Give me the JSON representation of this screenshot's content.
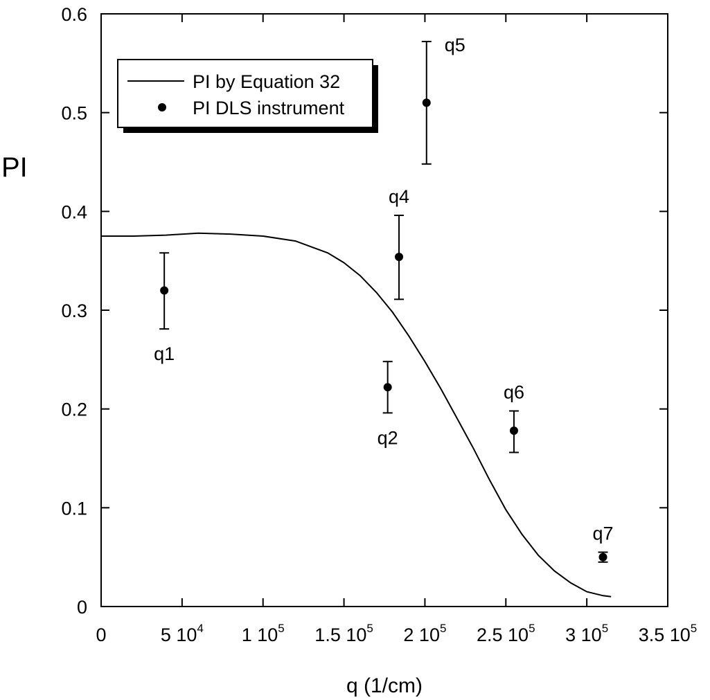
{
  "chart_data": {
    "type": "scatter",
    "title": "",
    "xlabel": "q (1/cm)",
    "ylabel": "PI",
    "xlim": [
      0,
      350000
    ],
    "ylim": [
      0,
      0.6
    ],
    "grid": false,
    "legend_position": "top-left",
    "x_ticks": [
      {
        "value": 0,
        "mant": "0",
        "exp": ""
      },
      {
        "value": 50000,
        "mant": "5 10",
        "exp": "4"
      },
      {
        "value": 100000,
        "mant": "1 10",
        "exp": "5"
      },
      {
        "value": 150000,
        "mant": "1.5 10",
        "exp": "5"
      },
      {
        "value": 200000,
        "mant": "2 10",
        "exp": "5"
      },
      {
        "value": 250000,
        "mant": "2.5 10",
        "exp": "5"
      },
      {
        "value": 300000,
        "mant": "3 10",
        "exp": "5"
      },
      {
        "value": 350000,
        "mant": "3.5 10",
        "exp": "5"
      }
    ],
    "y_ticks": [
      {
        "value": 0,
        "label": "0"
      },
      {
        "value": 0.1,
        "label": "0.1"
      },
      {
        "value": 0.2,
        "label": "0.2"
      },
      {
        "value": 0.3,
        "label": "0.3"
      },
      {
        "value": 0.4,
        "label": "0.4"
      },
      {
        "value": 0.5,
        "label": "0.5"
      },
      {
        "value": 0.6,
        "label": "0.6"
      }
    ],
    "legend": [
      {
        "label": "PI by Equation 32",
        "marker": "line"
      },
      {
        "label": "PI DLS instrument",
        "marker": "dot"
      }
    ],
    "series": [
      {
        "name": "PI by Equation 32",
        "kind": "line",
        "color": "#000000",
        "x": [
          0,
          20000,
          40000,
          60000,
          80000,
          100000,
          120000,
          140000,
          150000,
          160000,
          170000,
          180000,
          190000,
          200000,
          210000,
          220000,
          230000,
          240000,
          250000,
          260000,
          270000,
          280000,
          290000,
          300000,
          310000,
          315000
        ],
        "y": [
          0.375,
          0.375,
          0.376,
          0.378,
          0.377,
          0.375,
          0.37,
          0.358,
          0.348,
          0.335,
          0.318,
          0.298,
          0.274,
          0.248,
          0.22,
          0.19,
          0.16,
          0.128,
          0.098,
          0.073,
          0.052,
          0.036,
          0.024,
          0.015,
          0.011,
          0.01
        ]
      },
      {
        "name": "PI DLS instrument",
        "kind": "points",
        "color": "#000000",
        "points": [
          {
            "label": "q1",
            "x": 39000,
            "y": 0.32,
            "err_low": 0.281,
            "err_high": 0.358,
            "label_pos": "below"
          },
          {
            "label": "q2",
            "x": 177000,
            "y": 0.222,
            "err_low": 0.196,
            "err_high": 0.248,
            "label_pos": "below"
          },
          {
            "label": "q4",
            "x": 184000,
            "y": 0.354,
            "err_low": 0.311,
            "err_high": 0.396,
            "label_pos": "above"
          },
          {
            "label": "q5",
            "x": 201000,
            "y": 0.51,
            "err_low": 0.448,
            "err_high": 0.572,
            "label_pos": "above-right"
          },
          {
            "label": "q6",
            "x": 255000,
            "y": 0.178,
            "err_low": 0.156,
            "err_high": 0.198,
            "label_pos": "above"
          },
          {
            "label": "q7",
            "x": 310000,
            "y": 0.05,
            "err_low": 0.045,
            "err_high": 0.055,
            "label_pos": "above"
          }
        ]
      }
    ]
  }
}
